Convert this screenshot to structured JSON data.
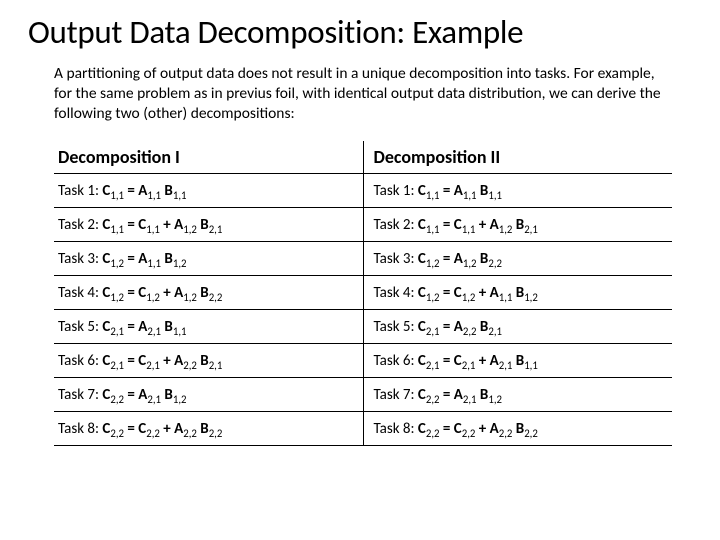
{
  "title": "Output Data Decomposition: Example",
  "intro": "A partitioning of output data does not result in a unique decomposition into tasks. For example, for the same problem as in previus foil, with identical output data distribution, we can derive the following two (other) decompositions:",
  "table": {
    "type": "table",
    "columns": [
      "Decomposition I",
      "Decomposition II"
    ],
    "column_widths": [
      "50%",
      "50%"
    ],
    "border_color": "#000000",
    "header_fontsize": 18,
    "cell_fontsize": 15,
    "background_color": "#ffffff",
    "rows": [
      {
        "left": {
          "label": "Task 1:",
          "expr": [
            {
              "t": "var",
              "b": "C",
              "s": "1,1"
            },
            {
              "t": "op",
              "v": " = "
            },
            {
              "t": "var",
              "b": "A",
              "s": "1,1"
            },
            {
              "t": "sp"
            },
            {
              "t": "var",
              "b": "B",
              "s": "1,1"
            }
          ]
        },
        "right": {
          "label": "Task 1:",
          "expr": [
            {
              "t": "var",
              "b": "C",
              "s": "1,1"
            },
            {
              "t": "op",
              "v": " = "
            },
            {
              "t": "var",
              "b": "A",
              "s": "1,1"
            },
            {
              "t": "sp"
            },
            {
              "t": "var",
              "b": "B",
              "s": "1,1"
            }
          ]
        }
      },
      {
        "left": {
          "label": "Task 2:",
          "expr": [
            {
              "t": "var",
              "b": "C",
              "s": "1,1"
            },
            {
              "t": "op",
              "v": " = "
            },
            {
              "t": "var",
              "b": "C",
              "s": "1,1"
            },
            {
              "t": "op",
              "v": " + "
            },
            {
              "t": "var",
              "b": "A",
              "s": "1,2"
            },
            {
              "t": "sp"
            },
            {
              "t": "var",
              "b": "B",
              "s": "2,1"
            }
          ]
        },
        "right": {
          "label": "Task 2:",
          "expr": [
            {
              "t": "var",
              "b": "C",
              "s": "1,1"
            },
            {
              "t": "op",
              "v": " = "
            },
            {
              "t": "var",
              "b": "C",
              "s": "1,1"
            },
            {
              "t": "op",
              "v": " + "
            },
            {
              "t": "var",
              "b": "A",
              "s": "1,2"
            },
            {
              "t": "sp"
            },
            {
              "t": "var",
              "b": "B",
              "s": "2,1"
            }
          ]
        }
      },
      {
        "left": {
          "label": "Task 3:",
          "expr": [
            {
              "t": "var",
              "b": "C",
              "s": "1,2"
            },
            {
              "t": "op",
              "v": " = "
            },
            {
              "t": "var",
              "b": "A",
              "s": "1,1"
            },
            {
              "t": "sp"
            },
            {
              "t": "var",
              "b": "B",
              "s": "1,2"
            }
          ]
        },
        "right": {
          "label": "Task 3:",
          "expr": [
            {
              "t": "var",
              "b": "C",
              "s": "1,2"
            },
            {
              "t": "op",
              "v": " = "
            },
            {
              "t": "var",
              "b": "A",
              "s": "1,2"
            },
            {
              "t": "sp"
            },
            {
              "t": "var",
              "b": "B",
              "s": "2,2"
            }
          ]
        }
      },
      {
        "left": {
          "label": "Task 4:",
          "expr": [
            {
              "t": "var",
              "b": "C",
              "s": "1,2"
            },
            {
              "t": "op",
              "v": " = "
            },
            {
              "t": "var",
              "b": "C",
              "s": "1,2"
            },
            {
              "t": "op",
              "v": " + "
            },
            {
              "t": "var",
              "b": "A",
              "s": "1,2"
            },
            {
              "t": "sp"
            },
            {
              "t": "var",
              "b": "B",
              "s": "2,2"
            }
          ]
        },
        "right": {
          "label": "Task 4:",
          "expr": [
            {
              "t": "var",
              "b": "C",
              "s": "1,2"
            },
            {
              "t": "op",
              "v": " = "
            },
            {
              "t": "var",
              "b": "C",
              "s": "1,2"
            },
            {
              "t": "op",
              "v": " + "
            },
            {
              "t": "var",
              "b": "A",
              "s": "1,1"
            },
            {
              "t": "sp"
            },
            {
              "t": "var",
              "b": "B",
              "s": "1,2"
            }
          ]
        }
      },
      {
        "left": {
          "label": "Task 5:",
          "expr": [
            {
              "t": "var",
              "b": "C",
              "s": "2,1"
            },
            {
              "t": "op",
              "v": " = "
            },
            {
              "t": "var",
              "b": "A",
              "s": "2,1"
            },
            {
              "t": "sp"
            },
            {
              "t": "var",
              "b": "B",
              "s": "1,1"
            }
          ]
        },
        "right": {
          "label": "Task 5:",
          "expr": [
            {
              "t": "var",
              "b": "C",
              "s": "2,1"
            },
            {
              "t": "op",
              "v": " = "
            },
            {
              "t": "var",
              "b": "A",
              "s": "2,2"
            },
            {
              "t": "sp"
            },
            {
              "t": "var",
              "b": "B",
              "s": "2,1"
            }
          ]
        }
      },
      {
        "left": {
          "label": "Task 6:",
          "expr": [
            {
              "t": "var",
              "b": "C",
              "s": "2,1"
            },
            {
              "t": "op",
              "v": " = "
            },
            {
              "t": "var",
              "b": "C",
              "s": "2,1"
            },
            {
              "t": "op",
              "v": " + "
            },
            {
              "t": "var",
              "b": "A",
              "s": "2,2"
            },
            {
              "t": "sp"
            },
            {
              "t": "var",
              "b": "B",
              "s": "2,1"
            }
          ]
        },
        "right": {
          "label": "Task 6:",
          "expr": [
            {
              "t": "var",
              "b": "C",
              "s": "2,1"
            },
            {
              "t": "op",
              "v": " = "
            },
            {
              "t": "var",
              "b": "C",
              "s": "2,1"
            },
            {
              "t": "op",
              "v": " + "
            },
            {
              "t": "var",
              "b": "A",
              "s": "2,1"
            },
            {
              "t": "sp"
            },
            {
              "t": "var",
              "b": "B",
              "s": "1,1"
            }
          ]
        }
      },
      {
        "left": {
          "label": "Task 7:",
          "expr": [
            {
              "t": "var",
              "b": "C",
              "s": "2,2"
            },
            {
              "t": "op",
              "v": " = "
            },
            {
              "t": "var",
              "b": "A",
              "s": "2,1"
            },
            {
              "t": "sp"
            },
            {
              "t": "var",
              "b": "B",
              "s": "1,2"
            }
          ]
        },
        "right": {
          "label": "Task 7:",
          "expr": [
            {
              "t": "var",
              "b": "C",
              "s": "2,2"
            },
            {
              "t": "op",
              "v": " = "
            },
            {
              "t": "var",
              "b": "A",
              "s": "2,1"
            },
            {
              "t": "sp"
            },
            {
              "t": "var",
              "b": "B",
              "s": "1,2"
            }
          ]
        }
      },
      {
        "left": {
          "label": "Task 8:",
          "expr": [
            {
              "t": "var",
              "b": "C",
              "s": "2,2"
            },
            {
              "t": "op",
              "v": " = "
            },
            {
              "t": "var",
              "b": "C",
              "s": "2,2"
            },
            {
              "t": "op",
              "v": " + "
            },
            {
              "t": "var",
              "b": "A",
              "s": "2,2"
            },
            {
              "t": "sp"
            },
            {
              "t": "var",
              "b": "B",
              "s": "2,2"
            }
          ]
        },
        "right": {
          "label": "Task 8:",
          "expr": [
            {
              "t": "var",
              "b": "C",
              "s": "2,2"
            },
            {
              "t": "op",
              "v": " = "
            },
            {
              "t": "var",
              "b": "C",
              "s": "2,2"
            },
            {
              "t": "op",
              "v": " + "
            },
            {
              "t": "var",
              "b": "A",
              "s": "2,2"
            },
            {
              "t": "sp"
            },
            {
              "t": "var",
              "b": "B",
              "s": "2,2"
            }
          ]
        }
      }
    ]
  }
}
